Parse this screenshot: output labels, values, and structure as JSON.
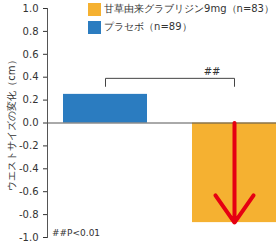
{
  "chart_data": {
    "type": "bar",
    "categories": [
      null,
      null
    ],
    "series": [
      {
        "name": "甘草由来グラブリジン9mg（n=83）",
        "color": "#f5b131",
        "values": [
          null,
          -0.87
        ]
      },
      {
        "name": "プラセボ（n=89）",
        "color": "#2b7cc0",
        "values": [
          0.25,
          null
        ]
      }
    ],
    "ylabel": "ウエストサイズの変化（cm）",
    "ylim": [
      -1,
      1
    ],
    "yticks": [
      {
        "value": -1,
        "label": "-1.0"
      },
      -0.8,
      -0.6,
      -0.4,
      -0.2,
      {
        "value": 0,
        "label": "0.0"
      },
      0.2,
      0.4,
      0.6,
      0.8,
      {
        "value": 1,
        "label": "1.0"
      }
    ],
    "annotation": "##",
    "note": "##P<0.01",
    "legend": "top-right",
    "tick_labels": "y",
    "stacked": false
  }
}
